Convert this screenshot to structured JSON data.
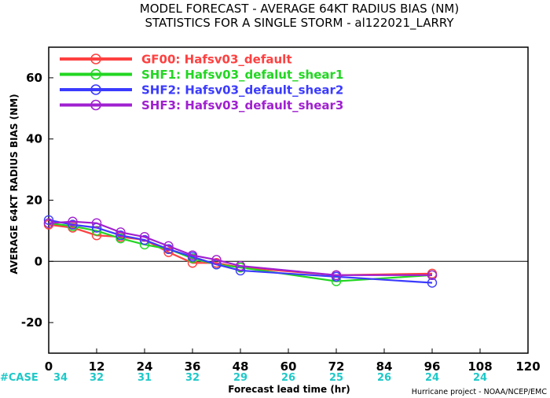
{
  "chart_data": {
    "type": "line",
    "title": "MODEL FORECAST - AVERAGE 64KT RADIUS BIAS (NM)",
    "subtitle": "STATISTICS FOR A SINGLE STORM - al122021_LARRY",
    "xlabel": "Forecast lead time (hr)",
    "ylabel": "AVERAGE 64KT RADIUS BIAS (NM)",
    "xlim": [
      0,
      120
    ],
    "ylim": [
      -30,
      70
    ],
    "xticks": [
      0,
      12,
      24,
      36,
      48,
      60,
      72,
      84,
      96,
      108,
      120
    ],
    "yticks": [
      -20,
      0,
      20,
      40,
      60
    ],
    "zero_line": true,
    "legend_position": "top-left",
    "case_label": "#CASE",
    "case_hours": [
      0,
      12,
      24,
      36,
      48,
      60,
      72,
      84,
      96,
      108
    ],
    "case_counts": [
      "34",
      "32",
      "31",
      "32",
      "29",
      "26",
      "25",
      "26",
      "24",
      "24"
    ],
    "credit": "Hurricane project - NOAA/NCEP/EMC",
    "series": [
      {
        "name": "GF00: Hafsv03_default",
        "color": "#ff4040",
        "x": [
          0,
          6,
          12,
          18,
          24,
          30,
          36,
          42,
          48,
          72,
          96
        ],
        "y": [
          12,
          11,
          8.5,
          8,
          7,
          3,
          -0.5,
          -0.5,
          -2,
          -4.5,
          -4
        ]
      },
      {
        "name": "SHF1: Hafsv03_defalut_shear1",
        "color": "#22d622",
        "x": [
          0,
          6,
          12,
          18,
          24,
          30,
          36,
          42,
          48,
          72,
          96
        ],
        "y": [
          12.5,
          11.5,
          10,
          7.5,
          5.5,
          4,
          1,
          -1,
          -2,
          -6.5,
          -4.5
        ]
      },
      {
        "name": "SHF2: Hafsv03_default_shear2",
        "color": "#3b3bff",
        "x": [
          0,
          6,
          12,
          18,
          24,
          30,
          36,
          42,
          48,
          72,
          96
        ],
        "y": [
          13.5,
          12,
          11,
          8.5,
          7,
          4,
          1.5,
          -1,
          -3,
          -5,
          -7
        ]
      },
      {
        "name": "SHF3: Hafsv03_default_shear3",
        "color": "#a020d0",
        "x": [
          0,
          6,
          12,
          18,
          24,
          30,
          36,
          42,
          48,
          72,
          96
        ],
        "y": [
          12.5,
          13,
          12.5,
          9.5,
          8,
          5,
          2,
          0.5,
          -1.5,
          -4.5,
          -4.5
        ]
      }
    ]
  }
}
